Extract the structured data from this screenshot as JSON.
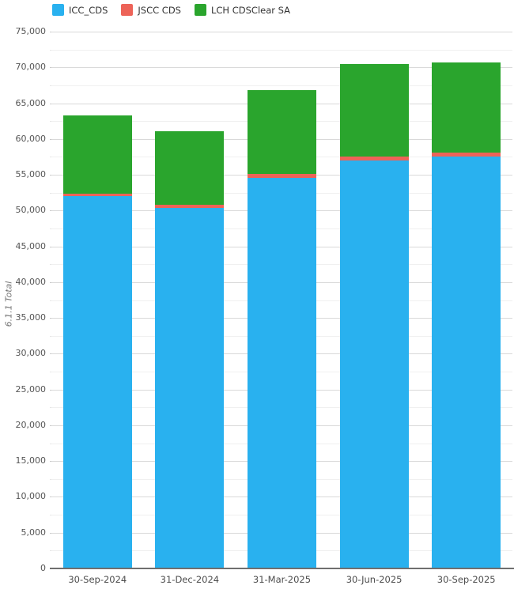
{
  "chart_data": {
    "type": "bar",
    "stacked": true,
    "title": "",
    "xlabel": "",
    "ylabel": "6.1.1 Total",
    "ylim": [
      0,
      75000
    ],
    "y_major_step": 5000,
    "y_minor_step": 2500,
    "grid": true,
    "legend_position": "top-left",
    "categories": [
      "30-Sep-2024",
      "31-Dec-2024",
      "31-Mar-2025",
      "30-Jun-2025",
      "30-Sep-2025"
    ],
    "series": [
      {
        "name": "ICC_CDS",
        "color": "#29b1ef",
        "values": [
          52000,
          50400,
          54600,
          57000,
          57600
        ]
      },
      {
        "name": "JSCC CDS",
        "color": "#ed6358",
        "values": [
          400,
          450,
          480,
          550,
          480
        ]
      },
      {
        "name": "LCH CDSClear SA",
        "color": "#2aa52d",
        "values": [
          10900,
          10250,
          11700,
          12900,
          12600
        ]
      }
    ],
    "stack_totals": [
      63300,
      61100,
      66780,
      70450,
      70680
    ]
  },
  "axis_style": {
    "major_grid_color": "#d9d9d9",
    "minor_grid_color": "#f0f0f0",
    "major_tick_color": "#c9c9c9",
    "minor_tick_color": "#e6e6e6",
    "axis_line_color": "#6f6f6f"
  }
}
